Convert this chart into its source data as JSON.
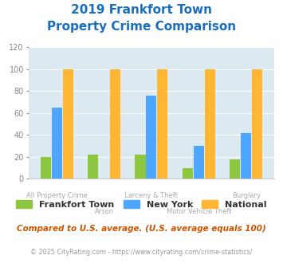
{
  "title_line1": "2019 Frankfort Town",
  "title_line2": "Property Crime Comparison",
  "categories": [
    "All Property Crime",
    "Arson",
    "Larceny & Theft",
    "Motor Vehicle Theft",
    "Burglary"
  ],
  "frankfort_town": [
    20,
    22,
    22,
    10,
    18
  ],
  "new_york": [
    65,
    0,
    76,
    30,
    42
  ],
  "national": [
    100,
    100,
    100,
    100,
    100
  ],
  "colors": {
    "frankfort_town": "#8dc63f",
    "new_york": "#4da6ff",
    "national": "#ffb733"
  },
  "ylim": [
    0,
    120
  ],
  "yticks": [
    0,
    20,
    40,
    60,
    80,
    100,
    120
  ],
  "legend_labels": [
    "Frankfort Town",
    "New York",
    "National"
  ],
  "footnote1": "Compared to U.S. average. (U.S. average equals 100)",
  "footnote2": "© 2025 CityRating.com - https://www.cityrating.com/crime-statistics/",
  "background_color": "#dce9f0",
  "title_color": "#1a6ebd",
  "footnote1_color": "#cc5500",
  "footnote2_color": "#999999",
  "footnote2_link_color": "#4da6ff"
}
